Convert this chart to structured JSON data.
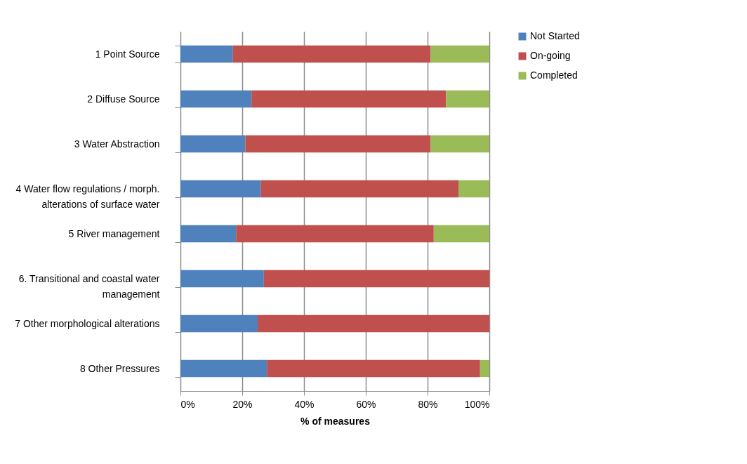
{
  "chart_data": {
    "type": "bar",
    "orientation": "horizontal",
    "stacked": true,
    "categories": [
      "1 Point Source",
      "2 Diffuse Source",
      "3 Water Abstraction",
      "4 Water flow regulations / morph. alterations of surface water",
      "5 River management",
      "6. Transitional and coastal water management",
      "7 Other morphological alterations",
      "8 Other Pressures"
    ],
    "series": [
      {
        "name": "Not Started",
        "color": "#4f81bd",
        "values": [
          17,
          23,
          21,
          26,
          18,
          27,
          25,
          28
        ]
      },
      {
        "name": "On-going",
        "color": "#c0504d",
        "values": [
          64,
          63,
          60,
          64,
          64,
          73,
          75,
          69
        ]
      },
      {
        "name": "Completed",
        "color": "#9bbb59",
        "values": [
          19,
          14,
          19,
          10,
          18,
          0,
          0,
          3
        ]
      }
    ],
    "xlabel": "% of measures",
    "xlim": [
      0,
      100
    ],
    "xticks": [
      {
        "value": 0,
        "label": "0%"
      },
      {
        "value": 20,
        "label": "20%"
      },
      {
        "value": 40,
        "label": "40%"
      },
      {
        "value": 60,
        "label": "60%"
      },
      {
        "value": 80,
        "label": "80%"
      },
      {
        "value": 100,
        "label": "100%"
      }
    ],
    "grid": "x",
    "legend": "right"
  }
}
